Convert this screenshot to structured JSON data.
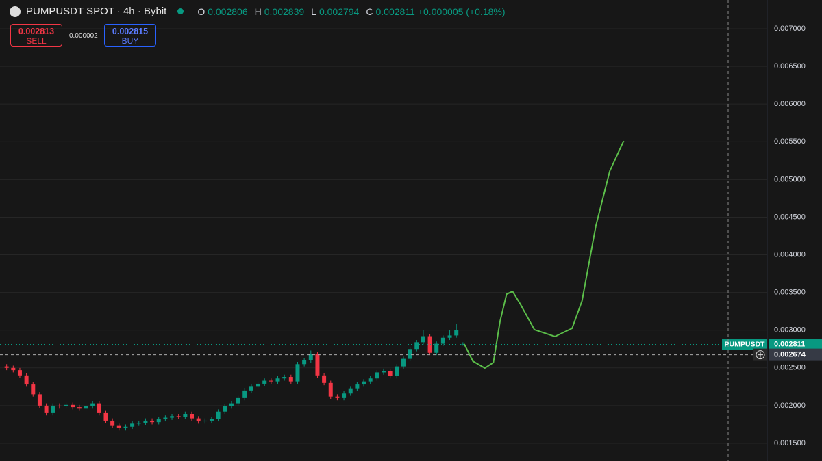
{
  "header": {
    "symbol": "PUMPUSDT SPOT · 4h · Bybit",
    "ohlc": [
      {
        "key": "O",
        "value": "0.002806"
      },
      {
        "key": "H",
        "value": "0.002839"
      },
      {
        "key": "L",
        "value": "0.002794"
      },
      {
        "key": "C",
        "value": "0.002811"
      }
    ],
    "change": "+0.000005 (+0.18%)"
  },
  "trade": {
    "sell_price": "0.002813",
    "sell_label": "SELL",
    "spread": "0.000002",
    "buy_price": "0.002815",
    "buy_label": "BUY"
  },
  "chart_data": {
    "type": "candlestick",
    "open": [
      0.00252,
      0.0025,
      0.00247,
      0.0024,
      0.00228,
      0.00215,
      0.002,
      0.0019,
      0.002,
      0.00199,
      0.00201,
      0.00198,
      0.00196,
      0.00199,
      0.00203,
      0.0019,
      0.0018,
      0.00173,
      0.0017,
      0.00172,
      0.00176,
      0.00177,
      0.0018,
      0.00178,
      0.00182,
      0.00184,
      0.00186,
      0.00185,
      0.00189,
      0.00183,
      0.00179,
      0.0018,
      0.00182,
      0.00192,
      0.00199,
      0.00203,
      0.0021,
      0.0022,
      0.00225,
      0.00229,
      0.00233,
      0.00232,
      0.00236,
      0.00238,
      0.00232,
      0.00255,
      0.0026,
      0.00268,
      0.0024,
      0.0023,
      0.00212,
      0.0021,
      0.00216,
      0.00222,
      0.00228,
      0.00232,
      0.00236,
      0.00244,
      0.00246,
      0.00239,
      0.00252,
      0.00262,
      0.00275,
      0.00284,
      0.00292,
      0.0027,
      0.00282,
      0.0029,
      0.00293,
      0.002806
    ],
    "high": [
      0.00255,
      0.00253,
      0.0025,
      0.00243,
      0.00231,
      0.00218,
      0.00203,
      0.00203,
      0.00203,
      0.00204,
      0.00204,
      0.00201,
      0.00202,
      0.00206,
      0.00206,
      0.00193,
      0.00183,
      0.00176,
      0.00175,
      0.00179,
      0.0018,
      0.00183,
      0.00183,
      0.00185,
      0.00187,
      0.00189,
      0.00189,
      0.00192,
      0.00192,
      0.00186,
      0.00183,
      0.00185,
      0.00195,
      0.00202,
      0.00206,
      0.00213,
      0.00223,
      0.00228,
      0.00232,
      0.00236,
      0.00236,
      0.00239,
      0.00241,
      0.00241,
      0.00258,
      0.00263,
      0.00273,
      0.00271,
      0.00243,
      0.00233,
      0.00215,
      0.00219,
      0.00225,
      0.00231,
      0.00235,
      0.00239,
      0.00247,
      0.00249,
      0.00249,
      0.00255,
      0.00265,
      0.00278,
      0.00287,
      0.003,
      0.00295,
      0.00285,
      0.00293,
      0.003,
      0.00308,
      0.002839
    ],
    "low": [
      0.00247,
      0.00244,
      0.00237,
      0.00225,
      0.00212,
      0.00197,
      0.00187,
      0.00187,
      0.00196,
      0.00196,
      0.00195,
      0.00193,
      0.00193,
      0.00196,
      0.00187,
      0.00177,
      0.0017,
      0.00167,
      0.00167,
      0.00169,
      0.00173,
      0.00174,
      0.00175,
      0.00175,
      0.00179,
      0.00181,
      0.00182,
      0.00182,
      0.0018,
      0.00176,
      0.00176,
      0.00177,
      0.00179,
      0.00189,
      0.00196,
      0.002,
      0.00207,
      0.00217,
      0.00222,
      0.00226,
      0.00229,
      0.00229,
      0.00233,
      0.00229,
      0.00229,
      0.00252,
      0.00257,
      0.00237,
      0.00227,
      0.00209,
      0.00207,
      0.00207,
      0.00213,
      0.00219,
      0.00225,
      0.00229,
      0.00233,
      0.00241,
      0.00236,
      0.00236,
      0.00249,
      0.00259,
      0.00272,
      0.00281,
      0.00267,
      0.00267,
      0.00279,
      0.00287,
      0.0029,
      0.002794
    ],
    "close": [
      0.0025,
      0.00247,
      0.0024,
      0.00228,
      0.00215,
      0.002,
      0.0019,
      0.002,
      0.00199,
      0.00201,
      0.00198,
      0.00196,
      0.00199,
      0.00203,
      0.0019,
      0.0018,
      0.00173,
      0.0017,
      0.00172,
      0.00176,
      0.00177,
      0.0018,
      0.00178,
      0.00182,
      0.00184,
      0.00186,
      0.00185,
      0.00189,
      0.00183,
      0.00179,
      0.0018,
      0.00182,
      0.00192,
      0.00199,
      0.00203,
      0.0021,
      0.0022,
      0.00225,
      0.00229,
      0.00233,
      0.00232,
      0.00236,
      0.00238,
      0.00232,
      0.00255,
      0.0026,
      0.00268,
      0.0024,
      0.0023,
      0.00212,
      0.0021,
      0.00216,
      0.00222,
      0.00228,
      0.00232,
      0.00236,
      0.00244,
      0.00246,
      0.00239,
      0.00252,
      0.00262,
      0.00275,
      0.00284,
      0.00292,
      0.0027,
      0.00282,
      0.0029,
      0.00293,
      0.003,
      0.002811
    ],
    "up_color": "#089981",
    "down_color": "#f23645",
    "xlim": [
      -1,
      115
    ],
    "ylim": [
      0.001264,
      0.007381
    ],
    "yticks": [
      {
        "value": 0.0015,
        "label": "0.001500"
      },
      {
        "value": 0.002,
        "label": "0.002000"
      },
      {
        "value": 0.0025,
        "label": "0.002500"
      },
      {
        "value": 0.003,
        "label": "0.003000"
      },
      {
        "value": 0.0035,
        "label": "0.003500"
      },
      {
        "value": 0.004,
        "label": "0.004000"
      },
      {
        "value": 0.0045,
        "label": "0.004500"
      },
      {
        "value": 0.005,
        "label": "0.005000"
      },
      {
        "value": 0.0055,
        "label": "0.005500"
      },
      {
        "value": 0.006,
        "label": "0.006000"
      },
      {
        "value": 0.0065,
        "label": "0.006500"
      },
      {
        "value": 0.007,
        "label": "0.007000"
      }
    ],
    "grid": true,
    "last_price": {
      "label": "PUMPUSDT",
      "value": 0.002811
    },
    "crosshair": 0.002674,
    "drawing": {
      "color": "#5cbf4a",
      "x": [
        69.2,
        70.5,
        72.3,
        73.6,
        74.6,
        75.6,
        76.5,
        77.7,
        79.8,
        82.9,
        85.5,
        87.0,
        89.1,
        91.2,
        93.3
      ],
      "values": [
        0.002816,
        0.002589,
        0.002498,
        0.002571,
        0.003115,
        0.003478,
        0.003515,
        0.003342,
        0.003007,
        0.002916,
        0.003025,
        0.003388,
        0.004386,
        0.005112,
        0.005511
      ]
    }
  }
}
